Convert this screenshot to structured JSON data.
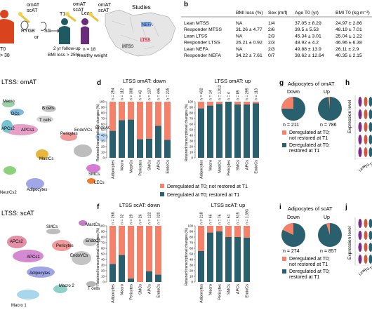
{
  "panel_a": {
    "groups": [
      {
        "label_bmi": "BMI",
        "label_val": "> 38",
        "tissue1": "omAT",
        "tissue2": "scAT"
      },
      {
        "surgery1": "RYGB",
        "or": "or",
        "surgery2": "SG",
        "label": "T1",
        "tissue1": "omAT",
        "tissue2": "scAT",
        "followup": "2 yr follow-up",
        "bmiloss": "BMI loss > 25%"
      },
      {
        "label": "Lean",
        "tissue1": "omAT",
        "tissue2": "scAT",
        "n": "n = 18",
        "weight": "Healthy weight"
      }
    ],
    "t0": "T0",
    "map_title": "Studies",
    "studies": [
      "NEFA",
      "LTSS",
      "MTSS"
    ]
  },
  "panel_b": {
    "letter": "b",
    "headers": [
      "",
      "BMI loss (%)",
      "Sex (m/f)",
      "Age T0 (yr)",
      "BMI T0 (kg m⁻²)"
    ],
    "rows": [
      [
        "Lean MTSS",
        "NA",
        "1/4",
        "37.05 ± 8.29",
        "24.97 ± 2.86"
      ],
      [
        "Responder MTSS",
        "31.26 ± 4.77",
        "2/6",
        "39.5 ± 5.53",
        "48.19 ± 7.01"
      ],
      [
        "Lean LTSS",
        "NA",
        "2/3",
        "45.34 ± 3.01",
        "25.04 ± 1.22"
      ],
      [
        "Responder LTSS",
        "26.21 ± 0.92",
        "2/3",
        "48.92 ± 4.2",
        "46.96 ± 6.38"
      ],
      [
        "Lean NEFA",
        "NA",
        "2/3",
        "49.88 ± 13.9",
        "26.11 ± 2.9"
      ],
      [
        "Responder NEFA",
        "34.22 ± 7.61",
        "0/7",
        "38.62 ± 12.64",
        "40.35 ± 2.15"
      ]
    ]
  },
  "panel_c": {
    "title": "LTSS: omAT",
    "clusters": [
      "Macro",
      "DCs",
      "B cells",
      "T cells",
      "APCs1",
      "APCs2",
      "Pericytes",
      "EndoVCs",
      "EndoACs",
      "MastCs",
      "SMCs",
      "LECs",
      "NeurCs2",
      "Adipocytes"
    ]
  },
  "panel_d": {
    "letter": "d",
    "ylabel": "Retained transcriptional changes (%)",
    "ticks": [
      "0",
      "10",
      "20",
      "30",
      "40",
      "50",
      "60",
      "70",
      "80",
      "90",
      "100"
    ]
  },
  "panel_e": {
    "title": "LTSS: scAT",
    "clusters": [
      "SMCs",
      "MastCs",
      "APCs2",
      "APCs1",
      "Pericytes",
      "EndoCs",
      "EndoVCs",
      "Adipocytes",
      "Macro 2",
      "Macro 1",
      "T cells"
    ]
  },
  "panel_f": {
    "letter": "f"
  },
  "panel_g": {
    "letter": "g",
    "title": "Adipocytes of omAT",
    "down": "Down",
    "up": "Up",
    "n_down": "n = 211",
    "n_up": "n = 786",
    "legend": [
      "Deregulated at T0;",
      "not restored at T1",
      "Deregulated at T0;",
      "restored at T1"
    ],
    "chart_data": {
      "type": "pie",
      "series": [
        {
          "name": "Down",
          "values": [
            25,
            75
          ]
        },
        {
          "name": "Up",
          "values": [
            2,
            98
          ]
        }
      ]
    }
  },
  "panel_h": {
    "letter": "h",
    "ylabel": "Expression level",
    "xticks": [
      "Lean",
      "T0",
      "T1"
    ]
  },
  "panel_i": {
    "letter": "i",
    "title": "Adipocytes of scAT",
    "down": "Down",
    "up": "Up",
    "n_down": "n = 274",
    "n_up": "n = 857",
    "legend": [
      "Deregulated at T0;",
      "not restored at T1",
      "Deregulated at T0;",
      "restored at T1"
    ],
    "chart_data": {
      "type": "pie",
      "series": [
        {
          "name": "Down",
          "values": [
            18,
            82
          ]
        },
        {
          "name": "Up",
          "values": [
            5,
            95
          ]
        }
      ]
    }
  },
  "panel_j": {
    "letter": "j",
    "ylabel": "Expression level",
    "xticks": [
      "Lean",
      "T0",
      "T1"
    ]
  },
  "legend_df": {
    "not_restored": "Deregulated at T0; not restored at T1",
    "restored": "Deregulated at T0; restored at T1"
  },
  "colors": {
    "not_restored": "#f4826a",
    "restored": "#2a5f6e"
  },
  "chart_data": [
    {
      "type": "bar",
      "title": "LTSS omAT: down",
      "categories": [
        "Adipocytes",
        "Macro",
        "MastCs",
        "Pericytes",
        "SMCs",
        "APCs",
        "EndoCs"
      ],
      "n_labels": [
        "n = 254",
        "n = 112",
        "n = 308",
        "n = 43",
        "n = 137",
        "n = 446",
        "n = 215"
      ],
      "series": [
        {
          "name": "Deregulated at T0; restored at T1",
          "values": [
            48,
            67,
            68,
            33,
            34,
            57,
            32
          ]
        }
      ],
      "ylabel": "Retained transcriptional changes (%)",
      "ylim": [
        0,
        100
      ]
    },
    {
      "type": "bar",
      "title": "LTSS omAT: up",
      "categories": [
        "Adipocytes",
        "Macro",
        "MastCs",
        "Pericytes",
        "SMCs",
        "APCs",
        "EndoCs"
      ],
      "n_labels": [
        "n = 432",
        "n = 14",
        "n = 1,012",
        "n = 4",
        "n = 85",
        "n = 295",
        "n = 113"
      ],
      "series": [
        {
          "name": "Deregulated at T0; restored at T1",
          "values": [
            88,
            93,
            96,
            100,
            95,
            95,
            97
          ]
        }
      ],
      "ylabel": "Retained transcriptional changes (%)",
      "ylim": [
        0,
        100
      ]
    },
    {
      "type": "bar",
      "title": "LTSS scAT: down",
      "categories": [
        "Adipocytes",
        "Macro",
        "Pericytes",
        "SMCs",
        "APCs",
        "EndoCs"
      ],
      "n_labels": [
        "n = 268",
        "n = 32",
        "n = 29",
        "n = 26",
        "n = 122",
        "n = 320"
      ],
      "series": [
        {
          "name": "Deregulated at T0; restored at T1",
          "values": [
            32,
            48,
            6,
            0,
            19,
            13
          ]
        }
      ],
      "ylabel": "Retained transcriptional changes (%)",
      "ylim": [
        0,
        100
      ]
    },
    {
      "type": "bar",
      "title": "LTSS scAT: up",
      "categories": [
        "Adipocytes",
        "Macro",
        "Pericytes",
        "SMCs",
        "APCs",
        "EndoCs"
      ],
      "n_labels": [
        "n = 218",
        "n = 46",
        "n = 76",
        "n = 61",
        "n = 515",
        "n = 1,393"
      ],
      "series": [
        {
          "name": "Deregulated at T0; restored at T1",
          "values": [
            55,
            88,
            90,
            80,
            80,
            79
          ]
        }
      ],
      "ylabel": "Retained transcriptional changes (%)",
      "ylim": [
        0,
        100
      ]
    }
  ]
}
